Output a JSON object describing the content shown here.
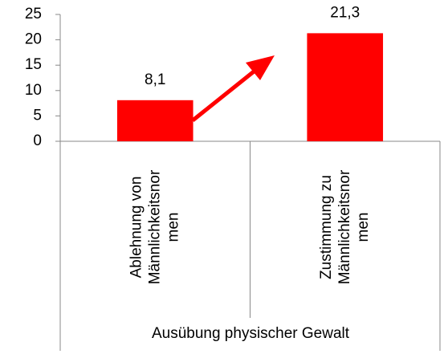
{
  "chart_data": {
    "type": "bar",
    "categories": [
      [
        "Ablehnung von",
        "Männlichkeitsnor",
        "men"
      ],
      [
        "Zustimmung zu",
        "Männlichkeitsnor",
        "men"
      ]
    ],
    "values": [
      8.1,
      21.3
    ],
    "value_labels": [
      "8,1",
      "21,3"
    ],
    "color": "#ff0000",
    "x_label": "Ausübung physischer Gewalt",
    "ylim": [
      0,
      25
    ],
    "yticks": [
      0,
      5,
      10,
      15,
      20,
      25
    ],
    "grid": false
  }
}
